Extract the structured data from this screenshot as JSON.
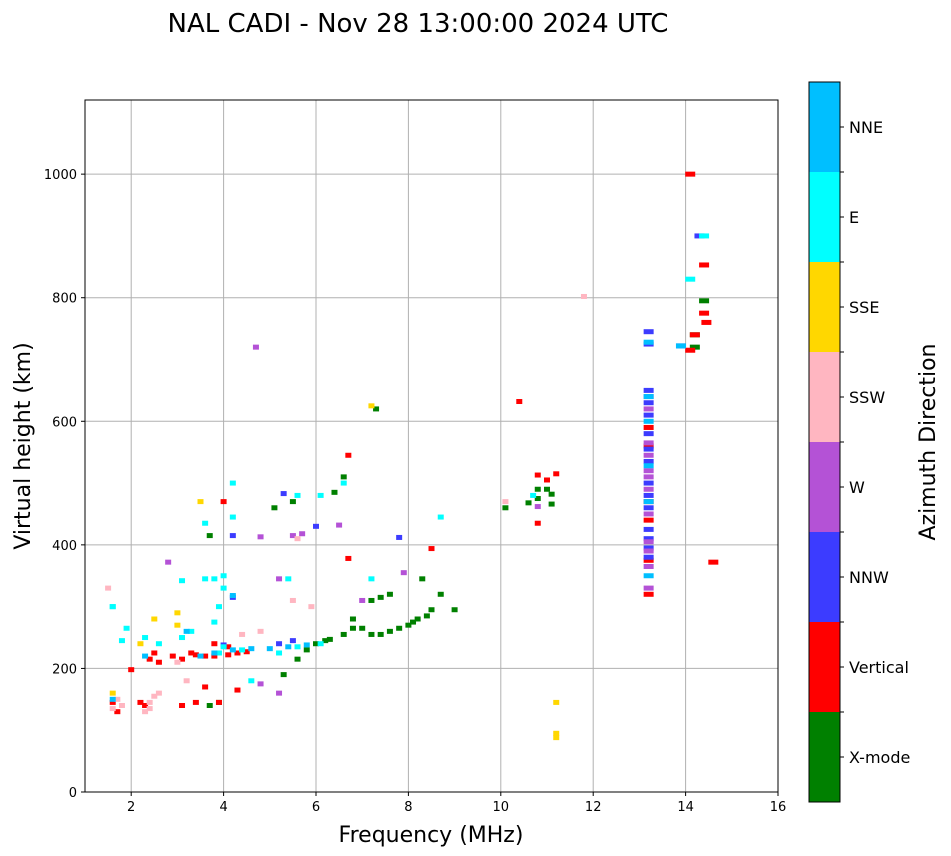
{
  "chart_data": {
    "type": "scatter",
    "title": "NAL CADI - Nov 28 13:00:00 2024 UTC",
    "xlabel": "Frequency (MHz)",
    "ylabel": "Virtual height (km)",
    "xlim": [
      1,
      16
    ],
    "ylim": [
      0,
      1120
    ],
    "xticks": [
      2,
      4,
      6,
      8,
      10,
      12,
      14,
      16
    ],
    "yticks": [
      0,
      200,
      400,
      600,
      800,
      1000
    ],
    "grid": true,
    "colorbar": {
      "label": "Azimuth Direction",
      "categories": [
        "X-mode",
        "Vertical",
        "NNW",
        "W",
        "SSW",
        "SSE",
        "E",
        "NNE"
      ],
      "colors": [
        "#008000",
        "#ff0000",
        "#3c3cff",
        "#b452d6",
        "#ffb6c1",
        "#ffd700",
        "#00ffff",
        "#00bfff"
      ]
    },
    "series": [
      {
        "name": "X-mode",
        "points": [
          [
            3.7,
            140
          ],
          [
            3.9,
            145
          ],
          [
            5.3,
            190
          ],
          [
            5.6,
            215
          ],
          [
            5.8,
            230
          ],
          [
            6.0,
            240
          ],
          [
            6.2,
            245
          ],
          [
            6.3,
            247
          ],
          [
            6.6,
            255
          ],
          [
            6.8,
            265
          ],
          [
            7.0,
            265
          ],
          [
            7.2,
            255
          ],
          [
            7.4,
            255
          ],
          [
            7.6,
            260
          ],
          [
            7.8,
            265
          ],
          [
            8.0,
            270
          ],
          [
            8.1,
            275
          ],
          [
            8.2,
            280
          ],
          [
            8.4,
            285
          ],
          [
            8.5,
            295
          ],
          [
            8.7,
            320
          ],
          [
            9.0,
            295
          ],
          [
            8.3,
            345
          ],
          [
            7.6,
            320
          ],
          [
            7.4,
            315
          ],
          [
            7.2,
            310
          ],
          [
            6.8,
            280
          ],
          [
            6.4,
            485
          ],
          [
            6.6,
            510
          ],
          [
            5.5,
            470
          ],
          [
            5.1,
            460
          ],
          [
            3.7,
            415
          ],
          [
            10.1,
            460
          ],
          [
            10.6,
            468
          ],
          [
            10.8,
            475
          ],
          [
            10.8,
            490
          ],
          [
            11.0,
            490
          ],
          [
            11.1,
            482
          ],
          [
            11.1,
            466
          ],
          [
            14.2,
            720
          ],
          [
            14.2,
            740
          ],
          [
            14.4,
            795
          ],
          [
            7.3,
            620
          ]
        ]
      },
      {
        "name": "Vertical",
        "points": [
          [
            1.6,
            145
          ],
          [
            1.7,
            130
          ],
          [
            2.3,
            140
          ],
          [
            2.4,
            215
          ],
          [
            2.5,
            225
          ],
          [
            2.6,
            210
          ],
          [
            2.9,
            220
          ],
          [
            3.1,
            215
          ],
          [
            3.3,
            225
          ],
          [
            3.4,
            222
          ],
          [
            3.6,
            220
          ],
          [
            3.8,
            220
          ],
          [
            4.1,
            222
          ],
          [
            4.3,
            225
          ],
          [
            4.5,
            227
          ],
          [
            3.1,
            140
          ],
          [
            3.4,
            145
          ],
          [
            3.6,
            170
          ],
          [
            3.9,
            145
          ],
          [
            4.3,
            165
          ],
          [
            3.8,
            240
          ],
          [
            4.1,
            235
          ],
          [
            4.0,
            470
          ],
          [
            6.7,
            545
          ],
          [
            6.7,
            378
          ],
          [
            8.5,
            394
          ],
          [
            10.4,
            632
          ],
          [
            10.8,
            513
          ],
          [
            10.8,
            435
          ],
          [
            11.0,
            505
          ],
          [
            11.2,
            515
          ],
          [
            13.2,
            320
          ],
          [
            13.2,
            375
          ],
          [
            13.2,
            440
          ],
          [
            13.2,
            470
          ],
          [
            13.2,
            560
          ],
          [
            13.2,
            590
          ],
          [
            14.1,
            715
          ],
          [
            14.2,
            740
          ],
          [
            14.4,
            775
          ],
          [
            14.45,
            760
          ],
          [
            14.6,
            372
          ],
          [
            14.1,
            1000
          ],
          [
            14.4,
            853
          ],
          [
            2.2,
            145
          ],
          [
            2.0,
            198
          ]
        ]
      },
      {
        "name": "NNW",
        "points": [
          [
            4.2,
            315
          ],
          [
            4.2,
            415
          ],
          [
            4.0,
            238
          ],
          [
            5.2,
            240
          ],
          [
            5.5,
            245
          ],
          [
            6.0,
            430
          ],
          [
            5.3,
            483
          ],
          [
            7.8,
            412
          ],
          [
            13.2,
            725
          ],
          [
            13.2,
            745
          ],
          [
            13.2,
            650
          ],
          [
            13.2,
            630
          ],
          [
            13.2,
            610
          ],
          [
            13.2,
            580
          ],
          [
            13.2,
            555
          ],
          [
            13.2,
            535
          ],
          [
            13.2,
            500
          ],
          [
            13.2,
            480
          ],
          [
            13.2,
            460
          ],
          [
            13.2,
            425
          ],
          [
            13.2,
            410
          ],
          [
            13.2,
            395
          ],
          [
            13.2,
            380
          ],
          [
            13.9,
            722
          ],
          [
            14.3,
            900
          ]
        ]
      },
      {
        "name": "W",
        "points": [
          [
            4.7,
            720
          ],
          [
            4.8,
            413
          ],
          [
            5.5,
            415
          ],
          [
            5.7,
            418
          ],
          [
            6.5,
            432
          ],
          [
            5.2,
            345
          ],
          [
            7.0,
            310
          ],
          [
            7.9,
            355
          ],
          [
            13.2,
            330
          ],
          [
            13.2,
            365
          ],
          [
            13.2,
            390
          ],
          [
            13.2,
            405
          ],
          [
            13.2,
            450
          ],
          [
            13.2,
            490
          ],
          [
            13.2,
            510
          ],
          [
            13.2,
            520
          ],
          [
            13.2,
            545
          ],
          [
            13.2,
            565
          ],
          [
            13.2,
            620
          ],
          [
            13.2,
            640
          ],
          [
            10.8,
            462
          ],
          [
            5.2,
            160
          ],
          [
            4.8,
            175
          ],
          [
            2.8,
            372
          ]
        ]
      },
      {
        "name": "SSW",
        "points": [
          [
            1.6,
            135
          ],
          [
            1.7,
            150
          ],
          [
            1.8,
            140
          ],
          [
            2.3,
            130
          ],
          [
            2.4,
            145
          ],
          [
            2.5,
            155
          ],
          [
            2.6,
            160
          ],
          [
            2.4,
            135
          ],
          [
            3.2,
            180
          ],
          [
            3.0,
            210
          ],
          [
            4.8,
            260
          ],
          [
            5.6,
            410
          ],
          [
            11.8,
            802
          ],
          [
            10.1,
            470
          ],
          [
            1.5,
            330
          ],
          [
            4.4,
            255
          ],
          [
            5.5,
            310
          ],
          [
            5.9,
            300
          ]
        ]
      },
      {
        "name": "SSE",
        "points": [
          [
            1.6,
            160
          ],
          [
            2.5,
            280
          ],
          [
            3.0,
            290
          ],
          [
            3.5,
            470
          ],
          [
            7.2,
            625
          ],
          [
            11.2,
            145
          ],
          [
            11.2,
            95
          ],
          [
            11.2,
            88
          ],
          [
            3.0,
            270
          ],
          [
            2.2,
            240
          ]
        ]
      },
      {
        "name": "E",
        "points": [
          [
            1.6,
            300
          ],
          [
            1.8,
            245
          ],
          [
            1.9,
            265
          ],
          [
            2.3,
            250
          ],
          [
            2.6,
            240
          ],
          [
            3.1,
            250
          ],
          [
            3.3,
            260
          ],
          [
            3.6,
            345
          ],
          [
            3.8,
            345
          ],
          [
            4.0,
            350
          ],
          [
            4.0,
            330
          ],
          [
            3.9,
            300
          ],
          [
            3.8,
            275
          ],
          [
            3.6,
            435
          ],
          [
            4.2,
            445
          ],
          [
            4.2,
            500
          ],
          [
            5.6,
            480
          ],
          [
            6.1,
            480
          ],
          [
            6.6,
            500
          ],
          [
            7.2,
            345
          ],
          [
            8.7,
            445
          ],
          [
            10.7,
            480
          ],
          [
            14.1,
            830
          ],
          [
            14.4,
            900
          ],
          [
            1.6,
            300
          ],
          [
            4.6,
            180
          ],
          [
            5.2,
            225
          ],
          [
            5.6,
            235
          ],
          [
            6.1,
            240
          ],
          [
            4.0,
            235
          ],
          [
            4.4,
            230
          ],
          [
            3.9,
            225
          ],
          [
            3.1,
            342
          ],
          [
            5.4,
            345
          ]
        ]
      },
      {
        "name": "NNE",
        "points": [
          [
            1.6,
            150
          ],
          [
            2.3,
            220
          ],
          [
            3.5,
            220
          ],
          [
            3.8,
            225
          ],
          [
            4.2,
            230
          ],
          [
            4.6,
            232
          ],
          [
            5.0,
            232
          ],
          [
            5.4,
            235
          ],
          [
            5.8,
            238
          ],
          [
            13.2,
            640
          ],
          [
            13.2,
            600
          ],
          [
            13.2,
            528
          ],
          [
            13.2,
            470
          ],
          [
            13.2,
            350
          ],
          [
            13.2,
            728
          ],
          [
            13.9,
            722
          ],
          [
            4.2,
            318
          ],
          [
            3.2,
            260
          ]
        ]
      }
    ]
  }
}
